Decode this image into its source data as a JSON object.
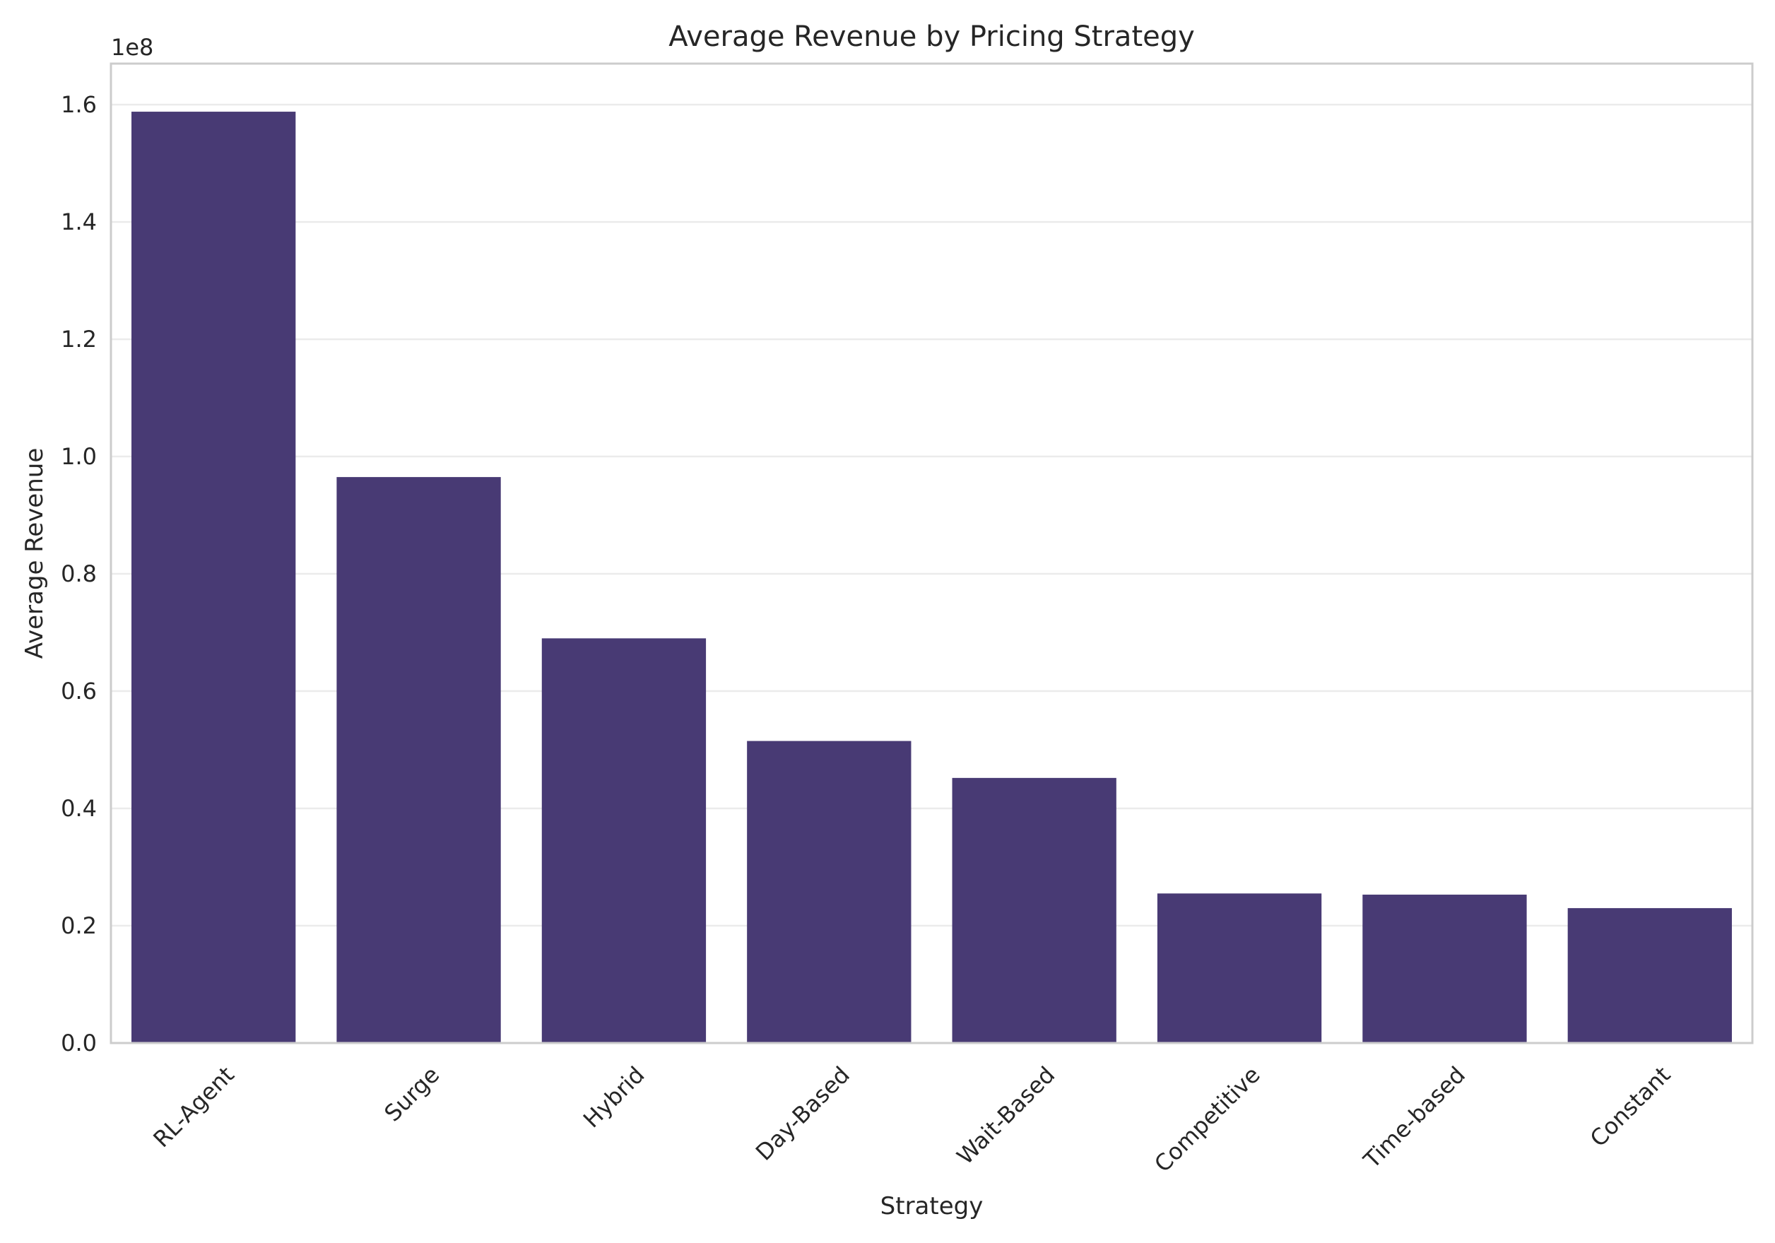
{
  "chart_data": {
    "type": "bar",
    "title": "Average Revenue by Pricing Strategy",
    "xlabel": "Strategy",
    "ylabel": "Average Revenue",
    "y_offset_label": "1e8",
    "categories": [
      "RL-Agent",
      "Surge",
      "Hybrid",
      "Day-Based",
      "Wait-Based",
      "Competitive",
      "Time-based",
      "Constant"
    ],
    "values": [
      158800000,
      96500000,
      69000000,
      51500000,
      45200000,
      25500000,
      25300000,
      23000000
    ],
    "y_scale": 100000000,
    "ylim": [
      0,
      1.67
    ],
    "yticks": [
      0.0,
      0.2,
      0.4,
      0.6,
      0.8,
      1.0,
      1.2,
      1.4,
      1.6
    ],
    "ytick_labels": [
      "0.0",
      "0.2",
      "0.4",
      "0.6",
      "0.8",
      "1.0",
      "1.2",
      "1.4",
      "1.6"
    ],
    "grid": "horizontal",
    "legend": "none",
    "bar_color": "#483a74",
    "grid_color": "#ebebeb",
    "frame_color": "#cccccc"
  }
}
